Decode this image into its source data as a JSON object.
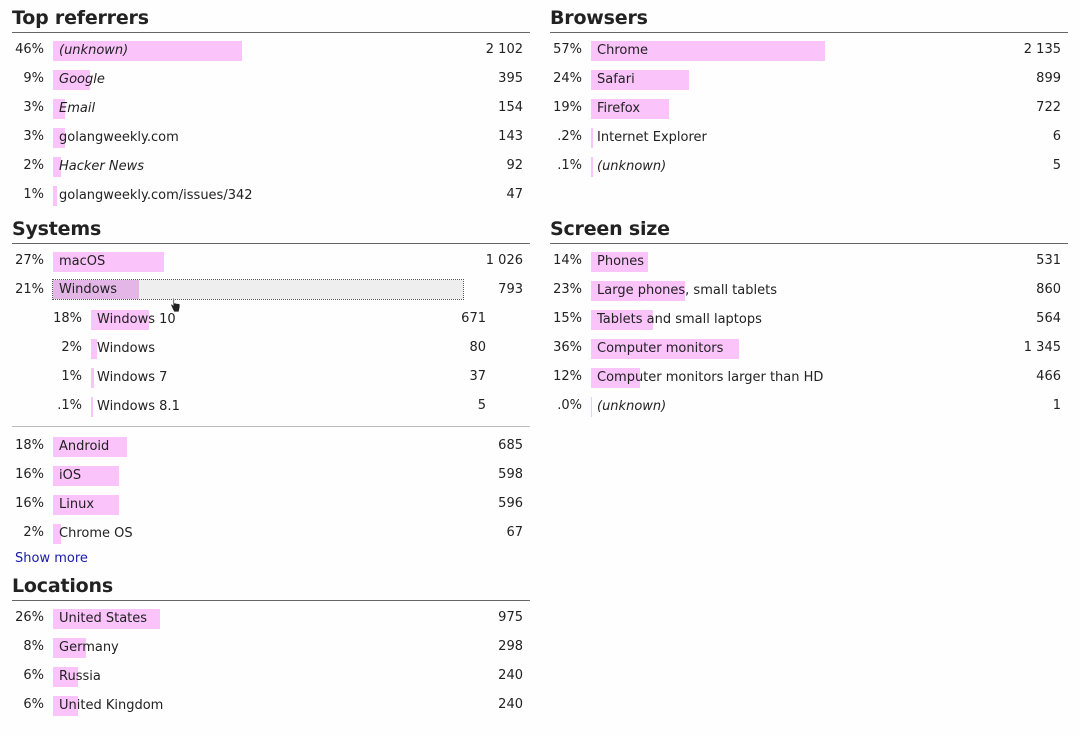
{
  "referrers": {
    "title": "Top referrers",
    "rows": [
      {
        "pct": "46%",
        "label": "(unknown)",
        "italic": true,
        "count": "2 102",
        "fraction": 0.46
      },
      {
        "pct": "9%",
        "label": "Google",
        "italic": true,
        "count": "395",
        "fraction": 0.09
      },
      {
        "pct": "3%",
        "label": "Email",
        "italic": true,
        "count": "154",
        "fraction": 0.03
      },
      {
        "pct": "3%",
        "label": "golangweekly.com",
        "italic": false,
        "count": "143",
        "fraction": 0.03
      },
      {
        "pct": "2%",
        "label": "Hacker News",
        "italic": true,
        "count": "92",
        "fraction": 0.02
      },
      {
        "pct": "1%",
        "label": "golangweekly.com/issues/342",
        "italic": false,
        "count": "47",
        "fraction": 0.01
      }
    ]
  },
  "browsers": {
    "title": "Browsers",
    "rows": [
      {
        "pct": "57%",
        "label": "Chrome",
        "italic": false,
        "count": "2 135",
        "fraction": 0.57
      },
      {
        "pct": "24%",
        "label": "Safari",
        "italic": false,
        "count": "899",
        "fraction": 0.24
      },
      {
        "pct": "19%",
        "label": "Firefox",
        "italic": false,
        "count": "722",
        "fraction": 0.19
      },
      {
        "pct": ".2%",
        "label": "Internet Explorer",
        "italic": false,
        "count": "6",
        "fraction": 0.002
      },
      {
        "pct": ".1%",
        "label": "(unknown)",
        "italic": true,
        "count": "5",
        "fraction": 0.001
      }
    ]
  },
  "systems": {
    "title": "Systems",
    "rows_top": [
      {
        "pct": "27%",
        "label": "macOS",
        "italic": false,
        "count": "1 026",
        "fraction": 0.27
      },
      {
        "pct": "21%",
        "label": "Windows",
        "italic": false,
        "count": "793",
        "fraction": 0.21,
        "active": true
      }
    ],
    "sub_rows": [
      {
        "pct": "18%",
        "label": "Windows 10",
        "italic": false,
        "count": "671",
        "fraction": 0.18
      },
      {
        "pct": "2%",
        "label": "Windows",
        "italic": false,
        "count": "80",
        "fraction": 0.02
      },
      {
        "pct": "1%",
        "label": "Windows 7",
        "italic": false,
        "count": "37",
        "fraction": 0.01
      },
      {
        "pct": ".1%",
        "label": "Windows 8.1",
        "italic": false,
        "count": "5",
        "fraction": 0.001
      }
    ],
    "rows_bottom": [
      {
        "pct": "18%",
        "label": "Android",
        "italic": false,
        "count": "685",
        "fraction": 0.18
      },
      {
        "pct": "16%",
        "label": "iOS",
        "italic": false,
        "count": "598",
        "fraction": 0.16
      },
      {
        "pct": "16%",
        "label": "Linux",
        "italic": false,
        "count": "596",
        "fraction": 0.16
      },
      {
        "pct": "2%",
        "label": "Chrome OS",
        "italic": false,
        "count": "67",
        "fraction": 0.02
      }
    ],
    "show_more": "Show more"
  },
  "screen": {
    "title": "Screen size",
    "rows": [
      {
        "pct": "14%",
        "label": "Phones",
        "italic": false,
        "count": "531",
        "fraction": 0.14
      },
      {
        "pct": "23%",
        "label": "Large phones, small tablets",
        "italic": false,
        "count": "860",
        "fraction": 0.23
      },
      {
        "pct": "15%",
        "label": "Tablets and small laptops",
        "italic": false,
        "count": "564",
        "fraction": 0.15
      },
      {
        "pct": "36%",
        "label": "Computer monitors",
        "italic": false,
        "count": "1 345",
        "fraction": 0.36
      },
      {
        "pct": "12%",
        "label": "Computer monitors larger than HD",
        "italic": false,
        "count": "466",
        "fraction": 0.12
      },
      {
        "pct": ".0%",
        "label": "(unknown)",
        "italic": true,
        "count": "1",
        "fraction": 0.0
      }
    ]
  },
  "locations": {
    "title": "Locations",
    "rows": [
      {
        "pct": "26%",
        "label": "United States",
        "italic": false,
        "count": "975",
        "fraction": 0.26
      },
      {
        "pct": "8%",
        "label": "Germany",
        "italic": false,
        "count": "298",
        "fraction": 0.08
      },
      {
        "pct": "6%",
        "label": "Russia",
        "italic": false,
        "count": "240",
        "fraction": 0.06
      },
      {
        "pct": "6%",
        "label": "United Kingdom",
        "italic": false,
        "count": "240",
        "fraction": 0.06
      }
    ]
  },
  "colors": {
    "bar": "#fac3fa",
    "bar_active": "#e4b6e8",
    "link": "#1a1aaa"
  },
  "cursor_icon": "hand-pointer-icon"
}
